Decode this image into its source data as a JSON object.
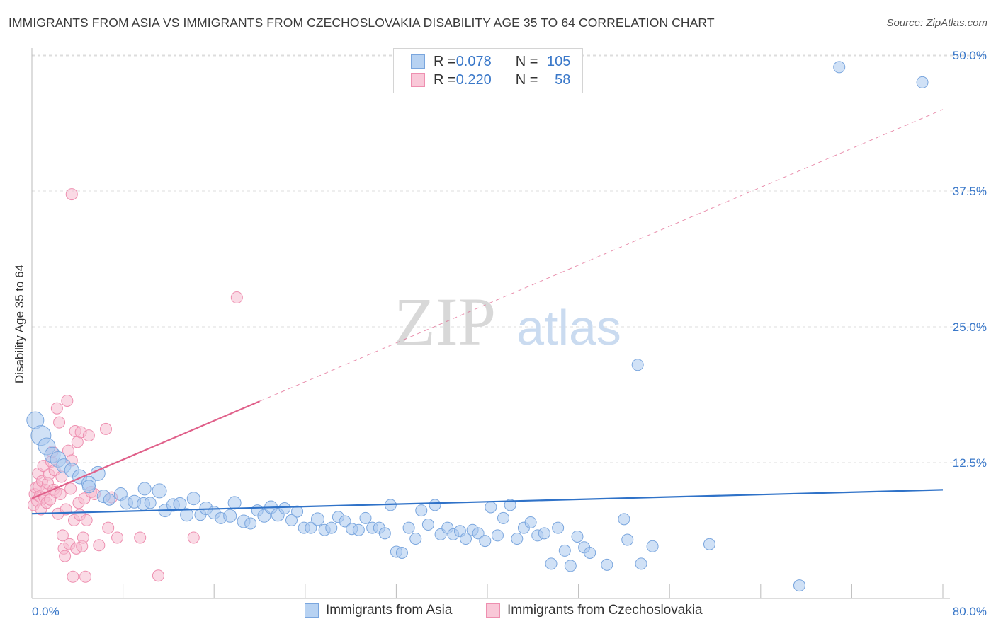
{
  "title": "IMMIGRANTS FROM ASIA VS IMMIGRANTS FROM CZECHOSLOVAKIA DISABILITY AGE 35 TO 64 CORRELATION CHART",
  "source": "Source: ZipAtlas.com",
  "watermark": {
    "zip": "ZIP",
    "atlas": "atlas"
  },
  "legend": {
    "rows": [
      {
        "r_label": "R = ",
        "r_value": "0.078",
        "n_label": "N = ",
        "n_value": "105"
      },
      {
        "r_label": "R = ",
        "r_value": "0.220",
        "n_label": "N = ",
        "n_value": "58"
      }
    ]
  },
  "colors": {
    "blue_fill": "#a9c8ee",
    "blue_stroke": "#7aa6de",
    "blue_line": "#2f72c8",
    "pink_fill": "#f6bcd0",
    "pink_stroke": "#ee8fb0",
    "pink_line": "#e0608a",
    "tick_label": "#3a78c9",
    "grid": "#dddddd"
  },
  "chart_data": {
    "type": "scatter",
    "title": "IMMIGRANTS FROM ASIA VS IMMIGRANTS FROM CZECHOSLOVAKIA DISABILITY AGE 35 TO 64 CORRELATION CHART",
    "xlabel": "",
    "ylabel": "Disability Age 35 to 64",
    "xlim": [
      0,
      80
    ],
    "ylim": [
      0,
      50
    ],
    "x_tick_labels": [
      "0.0%",
      "80.0%"
    ],
    "y_ticks": [
      12.5,
      25.0,
      37.5,
      50.0
    ],
    "y_tick_labels": [
      "12.5%",
      "25.0%",
      "37.5%",
      "50.0%"
    ],
    "grid": true,
    "series": [
      {
        "name": "Immigrants from Asia",
        "color": "#a9c8ee",
        "R": 0.078,
        "N": 105,
        "trend": {
          "x0": 0,
          "y0": 7.8,
          "x1": 80,
          "y1": 10.0,
          "style": "solid"
        },
        "points": [
          [
            0.3,
            16.4,
            12
          ],
          [
            0.8,
            15.0,
            14
          ],
          [
            1.3,
            14.0,
            12
          ],
          [
            1.8,
            13.2,
            11
          ],
          [
            2.3,
            12.8,
            11
          ],
          [
            2.8,
            12.2,
            10
          ],
          [
            3.5,
            11.8,
            10
          ],
          [
            4.2,
            11.2,
            10
          ],
          [
            5.0,
            10.6,
            10
          ],
          [
            5.8,
            11.5,
            10
          ],
          [
            5.0,
            10.3,
            9
          ],
          [
            6.3,
            9.4,
            9
          ],
          [
            6.8,
            9.1,
            8
          ],
          [
            7.8,
            9.6,
            9
          ],
          [
            8.3,
            8.8,
            9
          ],
          [
            9.0,
            8.9,
            9
          ],
          [
            9.8,
            8.7,
            9
          ],
          [
            9.9,
            10.1,
            9
          ],
          [
            10.4,
            8.8,
            8
          ],
          [
            11.2,
            9.9,
            10
          ],
          [
            11.7,
            8.1,
            9
          ],
          [
            12.4,
            8.6,
            9
          ],
          [
            13.0,
            8.7,
            9
          ],
          [
            13.6,
            7.7,
            9
          ],
          [
            14.2,
            9.2,
            9
          ],
          [
            14.8,
            7.7,
            8
          ],
          [
            15.3,
            8.3,
            9
          ],
          [
            16.0,
            7.9,
            9
          ],
          [
            16.6,
            7.4,
            8
          ],
          [
            17.4,
            7.6,
            9
          ],
          [
            17.8,
            8.8,
            9
          ],
          [
            18.6,
            7.1,
            9
          ],
          [
            19.2,
            6.9,
            8
          ],
          [
            19.8,
            8.1,
            8
          ],
          [
            20.4,
            7.6,
            9
          ],
          [
            21.0,
            8.4,
            9
          ],
          [
            21.6,
            7.7,
            9
          ],
          [
            22.2,
            8.3,
            8
          ],
          [
            22.8,
            7.2,
            8
          ],
          [
            23.3,
            8.0,
            8
          ],
          [
            23.9,
            6.5,
            8
          ],
          [
            24.5,
            6.5,
            8
          ],
          [
            25.1,
            7.3,
            9
          ],
          [
            25.7,
            6.3,
            8
          ],
          [
            26.3,
            6.5,
            8
          ],
          [
            26.9,
            7.5,
            8
          ],
          [
            27.5,
            7.1,
            8
          ],
          [
            28.1,
            6.4,
            8
          ],
          [
            28.7,
            6.3,
            8
          ],
          [
            29.3,
            7.4,
            8
          ],
          [
            29.9,
            6.5,
            8
          ],
          [
            30.5,
            6.5,
            8
          ],
          [
            31.0,
            6.0,
            8
          ],
          [
            31.5,
            8.6,
            8
          ],
          [
            32.0,
            4.3,
            8
          ],
          [
            32.5,
            4.2,
            8
          ],
          [
            33.1,
            6.5,
            8
          ],
          [
            33.7,
            5.5,
            8
          ],
          [
            34.2,
            8.1,
            8
          ],
          [
            34.8,
            6.8,
            8
          ],
          [
            35.4,
            8.6,
            8
          ],
          [
            35.9,
            5.9,
            8
          ],
          [
            36.5,
            6.5,
            8
          ],
          [
            37.0,
            5.9,
            8
          ],
          [
            37.6,
            6.2,
            8
          ],
          [
            38.1,
            5.5,
            8
          ],
          [
            38.7,
            6.3,
            8
          ],
          [
            39.2,
            6.0,
            8
          ],
          [
            39.8,
            5.3,
            8
          ],
          [
            40.3,
            8.4,
            8
          ],
          [
            40.9,
            5.8,
            8
          ],
          [
            41.4,
            7.4,
            8
          ],
          [
            42.0,
            8.6,
            8
          ],
          [
            42.6,
            5.5,
            8
          ],
          [
            43.2,
            6.5,
            8
          ],
          [
            43.8,
            7.0,
            8
          ],
          [
            44.4,
            5.8,
            8
          ],
          [
            45.0,
            6.0,
            8
          ],
          [
            45.6,
            3.2,
            8
          ],
          [
            46.2,
            6.5,
            8
          ],
          [
            46.8,
            4.4,
            8
          ],
          [
            47.3,
            3.0,
            8
          ],
          [
            47.9,
            5.7,
            8
          ],
          [
            48.5,
            4.7,
            8
          ],
          [
            49.0,
            4.2,
            8
          ],
          [
            50.5,
            3.1,
            8
          ],
          [
            52.0,
            7.3,
            8
          ],
          [
            52.3,
            5.4,
            8
          ],
          [
            53.2,
            21.5,
            8
          ],
          [
            53.5,
            3.2,
            8
          ],
          [
            54.5,
            4.8,
            8
          ],
          [
            59.5,
            5.0,
            8
          ],
          [
            67.4,
            1.2,
            8
          ],
          [
            70.9,
            48.9,
            8
          ],
          [
            78.2,
            47.5,
            8
          ]
        ]
      },
      {
        "name": "Immigrants from Czechoslovakia",
        "color": "#f6bcd0",
        "R": 0.22,
        "N": 58,
        "trend": {
          "x0": 0,
          "y0": 9.2,
          "x1": 80,
          "y1": 45.0,
          "solid_until_x": 20,
          "style": "solid-then-dashed"
        },
        "points": [
          [
            0.15,
            8.6,
            8
          ],
          [
            0.25,
            9.6,
            8
          ],
          [
            0.35,
            10.2,
            8
          ],
          [
            0.45,
            9.0,
            8
          ],
          [
            0.55,
            11.5,
            8
          ],
          [
            0.6,
            10.3,
            8
          ],
          [
            0.7,
            9.4,
            8
          ],
          [
            0.8,
            8.2,
            8
          ],
          [
            0.9,
            10.8,
            8
          ],
          [
            1.0,
            12.2,
            8
          ],
          [
            1.1,
            9.3,
            8
          ],
          [
            1.2,
            10.0,
            8
          ],
          [
            1.3,
            8.8,
            8
          ],
          [
            1.4,
            10.6,
            8
          ],
          [
            1.5,
            11.4,
            8
          ],
          [
            1.6,
            9.1,
            8
          ],
          [
            1.7,
            12.6,
            8
          ],
          [
            1.8,
            13.5,
            8
          ],
          [
            1.9,
            10.0,
            8
          ],
          [
            2.0,
            11.8,
            8
          ],
          [
            2.1,
            9.8,
            8
          ],
          [
            2.2,
            17.5,
            8
          ],
          [
            2.3,
            7.8,
            8
          ],
          [
            2.4,
            16.2,
            8
          ],
          [
            2.5,
            9.6,
            8
          ],
          [
            2.6,
            11.2,
            8
          ],
          [
            2.7,
            5.8,
            8
          ],
          [
            2.8,
            4.6,
            8
          ],
          [
            2.9,
            3.9,
            8
          ],
          [
            3.0,
            8.2,
            8
          ],
          [
            3.1,
            18.2,
            8
          ],
          [
            3.2,
            13.6,
            8
          ],
          [
            3.3,
            5.0,
            8
          ],
          [
            3.4,
            10.1,
            8
          ],
          [
            3.5,
            12.7,
            8
          ],
          [
            3.6,
            2.0,
            8
          ],
          [
            3.7,
            7.2,
            8
          ],
          [
            3.8,
            15.4,
            8
          ],
          [
            3.9,
            4.6,
            8
          ],
          [
            4.0,
            14.4,
            8
          ],
          [
            4.1,
            8.8,
            8
          ],
          [
            4.2,
            7.7,
            8
          ],
          [
            4.3,
            15.3,
            8
          ],
          [
            4.4,
            4.8,
            8
          ],
          [
            4.5,
            5.6,
            8
          ],
          [
            4.6,
            9.2,
            8
          ],
          [
            4.7,
            2.0,
            8
          ],
          [
            4.8,
            7.2,
            8
          ],
          [
            5.0,
            15.0,
            8
          ],
          [
            5.2,
            9.8,
            8
          ],
          [
            3.5,
            37.2,
            8
          ],
          [
            5.5,
            9.6,
            8
          ],
          [
            5.9,
            4.9,
            8
          ],
          [
            6.5,
            15.6,
            8
          ],
          [
            6.7,
            6.5,
            8
          ],
          [
            7.0,
            9.3,
            8
          ],
          [
            7.5,
            5.6,
            8
          ],
          [
            9.5,
            5.6,
            8
          ],
          [
            11.1,
            2.1,
            8
          ],
          [
            14.2,
            5.6,
            8
          ],
          [
            18.0,
            27.7,
            8
          ]
        ]
      }
    ]
  },
  "bottom_legend": {
    "items": [
      "Immigrants from Asia",
      "Immigrants from Czechoslovakia"
    ]
  }
}
